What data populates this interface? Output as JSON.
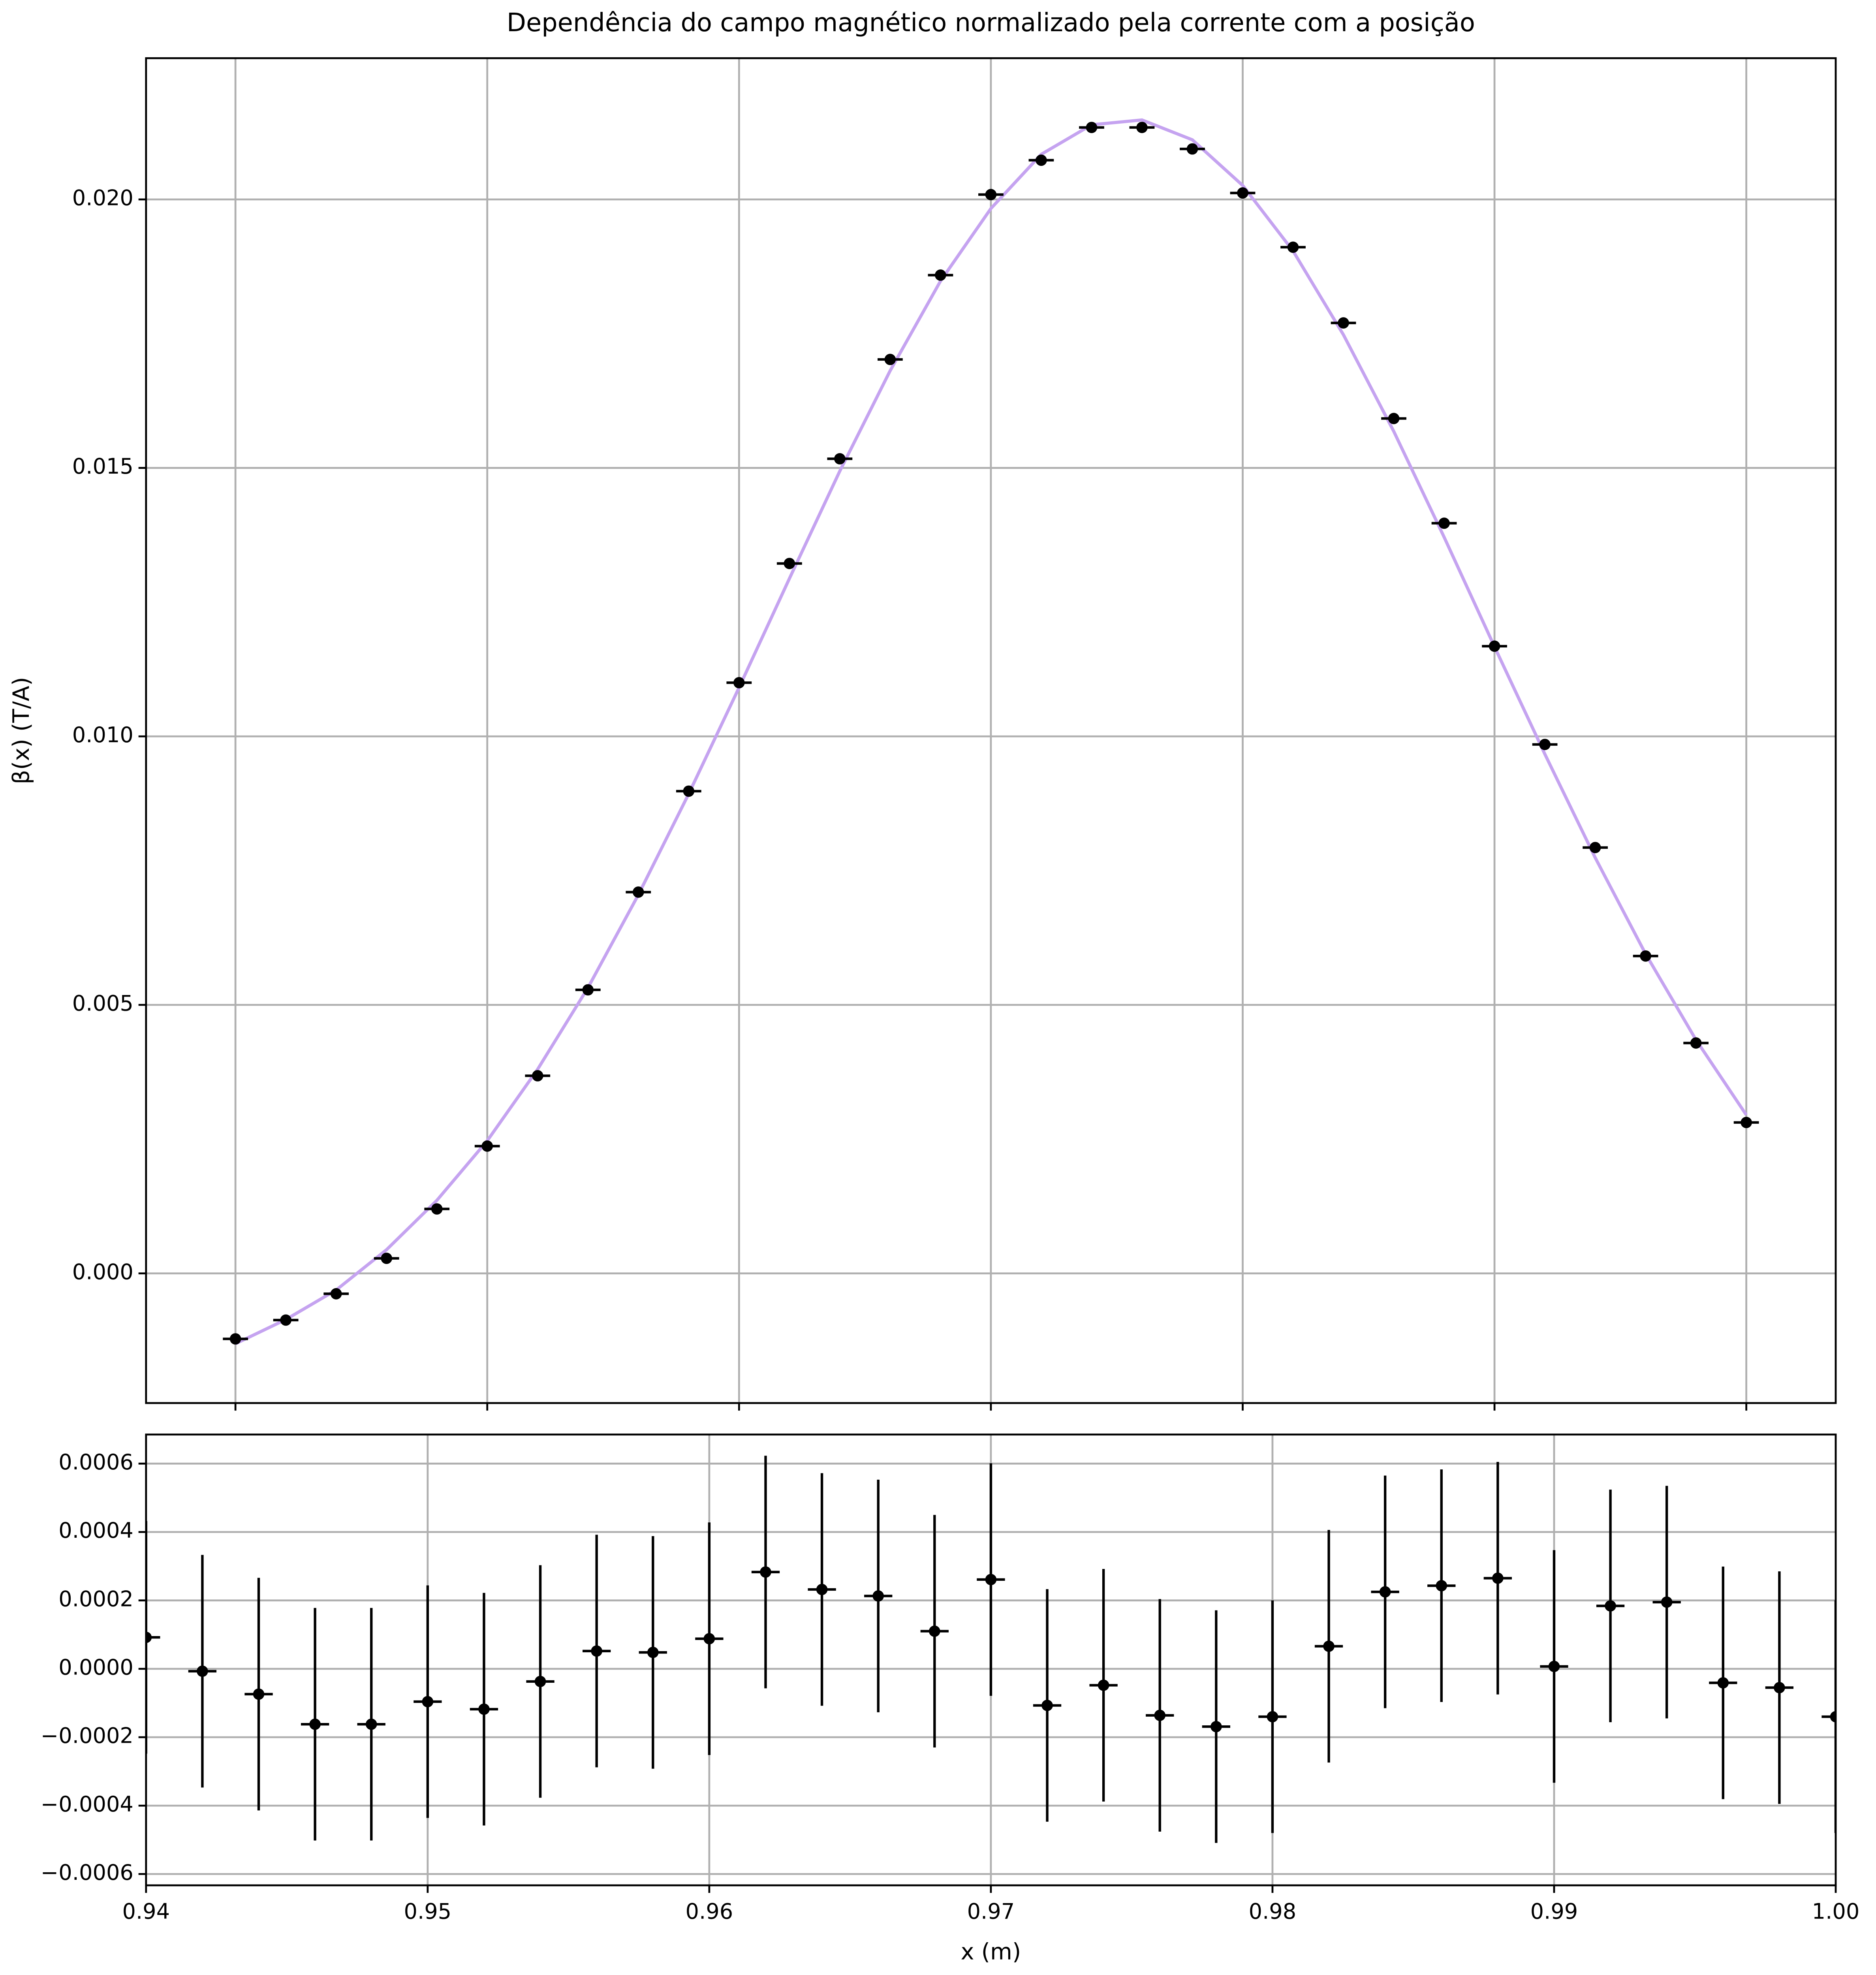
{
  "chart_data": [
    {
      "type": "errorbar",
      "title": "Dependência do campo magnético normalizado pela corrente com a posição",
      "ylabel": "β(x) (T/A)",
      "xlim": [
        0.93645,
        1.00355
      ],
      "xticks": [
        0.94,
        0.95,
        0.96,
        0.97,
        0.98,
        0.99,
        1.0
      ],
      "show_xticklabels": false,
      "ylim": [
        -0.002415,
        0.02263
      ],
      "yticks": [
        {
          "value": 0,
          "label": "0.000"
        },
        0.005,
        {
          "value": 0.01,
          "label": "0.010"
        },
        0.015,
        {
          "value": 0.02,
          "label": "0.020"
        }
      ],
      "grid": true,
      "series": [
        {
          "type": "line",
          "color": "#c5a3f0",
          "x": [
            0.94,
            0.942,
            0.944,
            0.946,
            0.948,
            0.95,
            0.952,
            0.954,
            0.956,
            0.958,
            0.96,
            0.962,
            0.964,
            0.966,
            0.968,
            0.97,
            0.972,
            0.974,
            0.976,
            0.978,
            0.98,
            0.982,
            0.984,
            0.986,
            0.988,
            0.99,
            0.992,
            0.994,
            0.996,
            0.998,
            1.0
          ],
          "values": [
            -0.00131,
            -0.00086,
            -0.00031,
            0.00044,
            0.00136,
            0.00247,
            0.0038,
            0.00532,
            0.00705,
            0.00893,
            0.01091,
            0.01294,
            0.01494,
            0.01681,
            0.01848,
            0.01983,
            0.02084,
            0.02139,
            0.02148,
            0.02111,
            0.02026,
            0.01904,
            0.01748,
            0.01568,
            0.01371,
            0.01167,
            0.00967,
            0.00774,
            0.00595,
            0.00435,
            0.00295
          ]
        },
        {
          "type": "errorbar",
          "color": "#000000",
          "xerr": 0.0005,
          "x": [
            0.94,
            0.942,
            0.944,
            0.946,
            0.948,
            0.95,
            0.952,
            0.954,
            0.956,
            0.958,
            0.96,
            0.962,
            0.964,
            0.966,
            0.968,
            0.97,
            0.972,
            0.974,
            0.976,
            0.978,
            0.98,
            0.982,
            0.984,
            0.986,
            0.988,
            0.99,
            0.992,
            0.994,
            0.996,
            0.998,
            1.0
          ],
          "values": [
            -0.00122,
            -0.00087,
            -0.00038,
            0.00028,
            0.0012,
            0.00237,
            0.00368,
            0.00528,
            0.0071,
            0.00898,
            0.011,
            0.01322,
            0.01517,
            0.01702,
            0.01859,
            0.02009,
            0.02073,
            0.02134,
            0.02134,
            0.02094,
            0.02012,
            0.01911,
            0.0177,
            0.01592,
            0.01397,
            0.01168,
            0.00985,
            0.00793,
            0.00591,
            0.00429,
            0.00281
          ]
        }
      ]
    },
    {
      "type": "errorbar",
      "xlabel": "x (m)",
      "xlim": [
        0.94,
        1.0
      ],
      "xticks": [
        0.94,
        0.95,
        0.96,
        0.97,
        0.98,
        0.99,
        {
          "value": 1.0,
          "label": "1.00"
        }
      ],
      "show_xticklabels": true,
      "ylim": [
        -0.000633,
        0.000685
      ],
      "yticks": [
        {
          "value": -0.0006,
          "label": "−0.0006"
        },
        {
          "value": -0.0004,
          "label": "−0.0004"
        },
        {
          "value": -0.0002,
          "label": "−0.0002"
        },
        {
          "value": 0,
          "label": "0.0000"
        },
        0.0002,
        0.0004,
        0.0006
      ],
      "grid": true,
      "series": [
        {
          "type": "errorbar",
          "color": "#000000",
          "xerr": 0.0005,
          "yerr": 0.00034,
          "x": [
            0.94,
            0.942,
            0.944,
            0.946,
            0.948,
            0.95,
            0.952,
            0.954,
            0.956,
            0.958,
            0.96,
            0.962,
            0.964,
            0.966,
            0.968,
            0.97,
            0.972,
            0.974,
            0.976,
            0.978,
            0.98,
            0.982,
            0.984,
            0.986,
            0.988,
            0.99,
            0.992,
            0.994,
            0.996,
            0.998,
            1.0
          ],
          "values": [
            9.2e-05,
            -7e-06,
            -7.4e-05,
            -0.000162,
            -0.000162,
            -9.6e-05,
            -0.000118,
            -3.7e-05,
            5.2e-05,
            4.8e-05,
            8.8e-05,
            0.000283,
            0.000232,
            0.000213,
            0.00011,
            0.000261,
            -0.000107,
            -4.8e-05,
            -0.000136,
            -0.000169,
            -0.00014,
            6.6e-05,
            0.000225,
            0.000243,
            0.000265,
            7e-06,
            0.000184,
            0.000195,
            -4.1e-05,
            -5.5e-05,
            -0.00014
          ]
        }
      ]
    }
  ]
}
